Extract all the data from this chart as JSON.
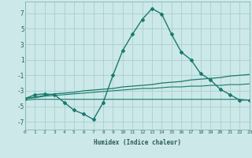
{
  "xlabel": "Humidex (Indice chaleur)",
  "x_values": [
    0,
    1,
    2,
    3,
    4,
    5,
    6,
    7,
    8,
    9,
    10,
    11,
    12,
    13,
    14,
    15,
    16,
    17,
    18,
    19,
    20,
    21,
    22,
    23
  ],
  "line1_y": [
    -4.0,
    -3.5,
    -3.4,
    -3.5,
    -4.5,
    -5.5,
    -6.0,
    -6.7,
    -4.5,
    -1.0,
    2.2,
    4.3,
    6.2,
    7.6,
    6.9,
    4.3,
    2.0,
    1.0,
    -0.8,
    -1.6,
    -2.8,
    -3.5,
    -4.2,
    -4.2
  ],
  "line2_y": [
    -4.0,
    -3.8,
    -3.6,
    -3.4,
    -3.3,
    -3.2,
    -3.0,
    -2.9,
    -2.8,
    -2.7,
    -2.5,
    -2.4,
    -2.3,
    -2.2,
    -2.0,
    -1.9,
    -1.8,
    -1.6,
    -1.5,
    -1.4,
    -1.3,
    -1.1,
    -1.0,
    -0.9
  ],
  "line3_y": [
    -4.0,
    -3.9,
    -3.7,
    -3.6,
    -3.5,
    -3.4,
    -3.3,
    -3.2,
    -3.1,
    -3.0,
    -2.9,
    -2.8,
    -2.7,
    -2.7,
    -2.6,
    -2.5,
    -2.5,
    -2.4,
    -2.4,
    -2.3,
    -2.3,
    -2.2,
    -2.2,
    -2.1
  ],
  "line4_y": [
    -4.2,
    -4.1,
    -4.1,
    -4.1,
    -4.1,
    -4.1,
    -4.1,
    -4.1,
    -4.1,
    -4.1,
    -4.1,
    -4.1,
    -4.1,
    -4.1,
    -4.1,
    -4.1,
    -4.1,
    -4.1,
    -4.1,
    -4.1,
    -4.1,
    -4.1,
    -4.1,
    -4.2
  ],
  "line_color": "#1a7a6e",
  "bg_color": "#cce8e8",
  "grid_color": "#aacfcf",
  "ylim": [
    -8,
    8.5
  ],
  "xlim": [
    0,
    23
  ],
  "yticks": [
    -7,
    -5,
    -3,
    -1,
    1,
    3,
    5,
    7
  ],
  "xticks": [
    0,
    1,
    2,
    3,
    4,
    5,
    6,
    7,
    8,
    9,
    10,
    11,
    12,
    13,
    14,
    15,
    16,
    17,
    18,
    19,
    20,
    21,
    22,
    23
  ],
  "marker": "D",
  "markersize": 2.0
}
